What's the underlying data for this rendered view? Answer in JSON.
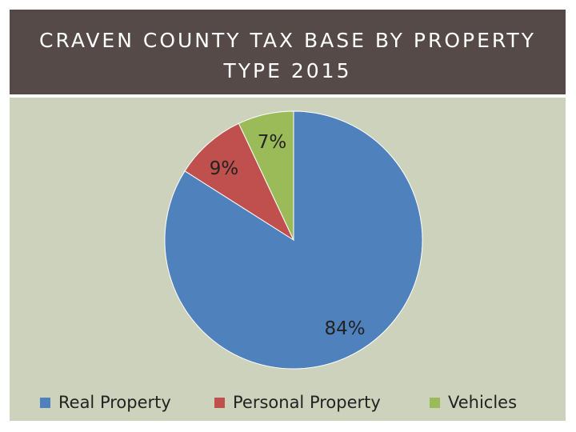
{
  "title_lines": [
    "CRAVEN COUNTY TAX BASE BY PROPERTY",
    "TYPE 2015"
  ],
  "chart_data": {
    "type": "pie",
    "title": "CRAVEN COUNTY TAX BASE BY PROPERTY TYPE 2015",
    "categories": [
      "Real Property",
      "Personal Property",
      "Vehicles"
    ],
    "values": [
      84,
      9,
      7
    ],
    "labels": [
      "84%",
      "9%",
      "7%"
    ],
    "colors": [
      "#4f81bd",
      "#c0504d",
      "#9bbb59"
    ],
    "legend_position": "bottom"
  },
  "colors": {
    "title_background": "#564a48",
    "plot_background": "#cdd2bc",
    "slice_border": "#ffffff"
  }
}
